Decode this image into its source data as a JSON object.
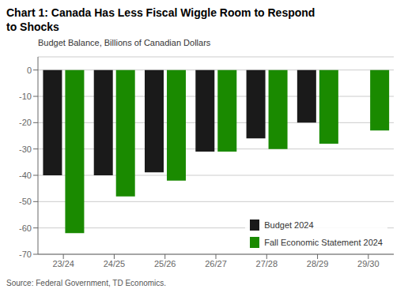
{
  "chart_data": {
    "type": "bar",
    "title": "Chart 1: Canada Has Less Fiscal Wiggle Room to Respond\nto Shocks",
    "subtitle": "Budget Balance, Billions of Canadian Dollars",
    "annotations": [
      "Source: Federal Government, TD Economics."
    ],
    "categories": [
      "23/24",
      "24/25",
      "25/26",
      "26/27",
      "27/28",
      "28/29",
      "29/30"
    ],
    "series": [
      {
        "name": "Budget 2024",
        "color": "#1a1a1a",
        "values": [
          -40.0,
          -40.0,
          -38.9,
          -31.0,
          -26.0,
          -20.0,
          null
        ]
      },
      {
        "name": "Fall Economic Statement 2024",
        "color": "#1a8a00",
        "values": [
          -62.0,
          -48.0,
          -42.0,
          -31.0,
          -30.0,
          -28.0,
          -23.0
        ]
      }
    ],
    "ylim": [
      -70,
      5
    ],
    "yticks": [
      0,
      -10,
      -20,
      -30,
      -40,
      -50,
      -60,
      -70
    ],
    "grid": true,
    "legend": "lower right"
  }
}
